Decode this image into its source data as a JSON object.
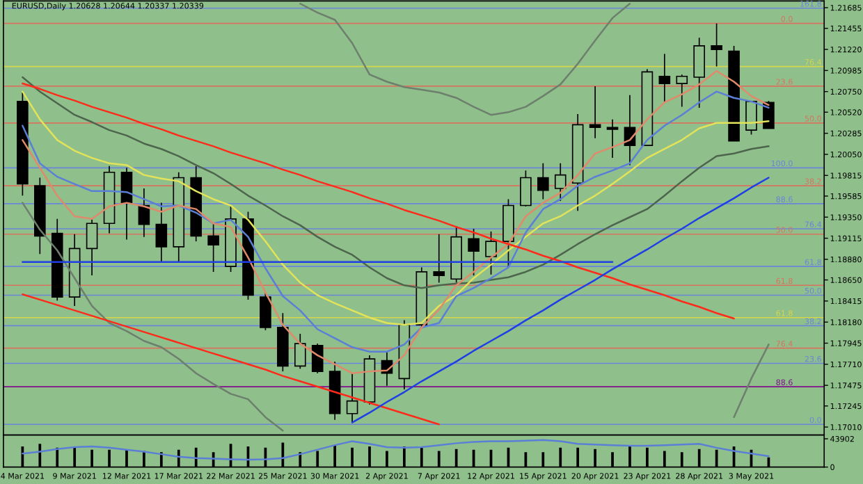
{
  "chart_data": [
    {
      "type": "candlestick",
      "title": "EURUSD,Daily 1.20628 1.20644 1.20337 1.20339",
      "categories": [
        null,
        null,
        null,
        null,
        null,
        null,
        null,
        null,
        null,
        null,
        null,
        null,
        null,
        null,
        null,
        null,
        null,
        null,
        null,
        null,
        null,
        null,
        null,
        null,
        null,
        null,
        null,
        null,
        null,
        null,
        null,
        null,
        null,
        null,
        null,
        null,
        null,
        null,
        null,
        null,
        null,
        null,
        null,
        null
      ],
      "ohlc": [
        [
          1.2064,
          1.2074,
          1.1959,
          1.1972
        ],
        [
          1.197,
          1.1979,
          1.1894,
          1.1914
        ],
        [
          1.1917,
          1.1933,
          1.1842,
          1.1846
        ],
        [
          1.1846,
          1.1916,
          1.1836,
          1.19
        ],
        [
          1.19,
          1.1933,
          1.187,
          1.1928
        ],
        [
          1.1928,
          1.1992,
          1.1917,
          1.1985
        ],
        [
          1.1985,
          1.199,
          1.191,
          1.1951
        ],
        [
          1.1948,
          1.1967,
          1.1913,
          1.1927
        ],
        [
          1.1927,
          1.1951,
          1.1885,
          1.1902
        ],
        [
          1.1902,
          1.1985,
          1.1885,
          1.1979
        ],
        [
          1.1979,
          1.1992,
          1.1908,
          1.1914
        ],
        [
          1.1914,
          1.1928,
          1.1874,
          1.1904
        ],
        [
          1.188,
          1.1947,
          1.1874,
          1.1933
        ],
        [
          1.1933,
          1.1941,
          1.1843,
          1.1848
        ],
        [
          1.1846,
          1.1851,
          1.1809,
          1.1812
        ],
        [
          1.1812,
          1.1828,
          1.1763,
          1.1769
        ],
        [
          1.1769,
          1.1805,
          1.1766,
          1.1794
        ],
        [
          1.1792,
          1.1794,
          1.1761,
          1.1763
        ],
        [
          1.1763,
          1.1774,
          1.1709,
          1.1716
        ],
        [
          1.1716,
          1.1761,
          1.1706,
          1.173
        ],
        [
          1.1729,
          1.1781,
          1.1726,
          1.1777
        ],
        [
          1.1775,
          1.1785,
          1.1747,
          1.1761
        ],
        [
          1.1755,
          1.182,
          1.1743,
          1.1815
        ],
        [
          1.1815,
          1.1879,
          1.1811,
          1.1874
        ],
        [
          1.1874,
          1.1916,
          1.1862,
          1.187
        ],
        [
          1.1866,
          1.1925,
          1.1862,
          1.1913
        ],
        [
          1.1911,
          1.1922,
          1.187,
          1.1897
        ],
        [
          1.1891,
          1.1919,
          1.1871,
          1.1908
        ],
        [
          1.1908,
          1.1955,
          1.1879,
          1.1948
        ],
        [
          1.1948,
          1.1987,
          1.1947,
          1.1979
        ],
        [
          1.1979,
          1.1995,
          1.1955,
          1.1965
        ],
        [
          1.1967,
          1.1995,
          1.1953,
          1.1982
        ],
        [
          1.1973,
          1.205,
          1.1942,
          1.2038
        ],
        [
          1.2038,
          1.2081,
          1.2023,
          1.2035
        ],
        [
          1.2035,
          1.2044,
          1.2001,
          1.2033
        ],
        [
          1.2035,
          1.2071,
          1.1993,
          1.2015
        ],
        [
          1.2015,
          1.21,
          1.2015,
          1.2097
        ],
        [
          1.2092,
          1.2117,
          1.2063,
          1.2084
        ],
        [
          1.2084,
          1.2094,
          1.2058,
          1.2092
        ],
        [
          1.2091,
          1.2135,
          1.2057,
          1.2126
        ],
        [
          1.2126,
          1.2151,
          1.2103,
          1.2122
        ],
        [
          1.212,
          1.2126,
          1.202,
          1.202
        ],
        [
          1.2032,
          1.2064,
          1.2027,
          1.2064
        ],
        [
          1.20628,
          1.20644,
          1.20337,
          1.20339
        ]
      ],
      "series": [
        {
          "type": "line",
          "color": "#6d7f6d",
          "values": [
            null,
            null,
            null,
            null,
            null,
            null,
            null,
            null,
            null,
            null,
            null,
            null,
            null,
            null,
            null,
            null,
            1.2173,
            1.2163,
            1.2155,
            1.2129,
            1.2094,
            1.2086,
            1.208,
            1.2077,
            1.2074,
            1.2068,
            1.2058,
            1.2049,
            1.2052,
            1.2058,
            1.207,
            1.2083,
            1.2106,
            1.2132,
            1.2157,
            1.2173,
            null,
            null,
            null,
            null,
            null,
            null,
            null,
            null
          ]
        },
        {
          "type": "line",
          "color": "#6d7f6d",
          "values": [
            1.1951,
            1.1921,
            1.1898,
            1.1867,
            1.1836,
            1.1817,
            1.1808,
            1.1797,
            1.179,
            1.1777,
            1.1761,
            1.1749,
            1.1738,
            1.1732,
            1.1712,
            1.1697,
            null,
            null,
            null,
            null,
            null,
            null,
            null,
            null,
            null,
            null,
            null,
            null,
            null,
            null,
            null,
            null,
            null,
            null,
            null,
            null,
            null,
            null,
            null,
            null,
            null,
            1.1712,
            1.1755,
            1.1793
          ]
        },
        {
          "type": "line",
          "color": "#4d654d",
          "values": [
            1.2091,
            1.2075,
            1.2062,
            1.2049,
            1.2041,
            1.2032,
            1.2026,
            1.2017,
            1.2011,
            1.2003,
            1.1993,
            1.1984,
            1.1972,
            1.1959,
            1.1948,
            1.1936,
            1.1926,
            1.1913,
            1.1902,
            1.1893,
            1.1879,
            1.1867,
            1.1859,
            1.1856,
            1.1859,
            1.1861,
            1.1862,
            1.1865,
            1.1868,
            1.1874,
            1.1882,
            1.1893,
            1.1905,
            1.1916,
            1.1926,
            1.1935,
            1.1944,
            1.1959,
            1.1975,
            1.199,
            1.2003,
            1.2006,
            1.2011,
            1.2014
          ]
        },
        {
          "type": "line",
          "color": "#e3e35a",
          "values": [
            1.2075,
            1.2044,
            1.2021,
            1.2009,
            1.2001,
            1.1995,
            1.1993,
            1.1982,
            1.1978,
            1.1975,
            1.1964,
            1.1955,
            1.1948,
            1.1932,
            1.1908,
            1.1882,
            1.1862,
            1.1848,
            1.1839,
            1.1831,
            1.1823,
            1.1817,
            1.1815,
            1.1817,
            1.1836,
            1.1848,
            1.1867,
            1.1882,
            1.1898,
            1.1913,
            1.1928,
            1.1936,
            1.1948,
            1.1959,
            1.1972,
            1.1986,
            1.2001,
            1.2011,
            1.2021,
            1.2034,
            1.204,
            1.204,
            1.204,
            1.2042
          ]
        },
        {
          "type": "line",
          "color": "#5b7fd6",
          "values": [
            1.2037,
            1.1995,
            1.198,
            1.1972,
            1.1964,
            1.1964,
            1.1963,
            1.1955,
            1.1947,
            1.1948,
            1.194,
            1.1928,
            1.1932,
            1.1913,
            1.1878,
            1.1847,
            1.1831,
            1.181,
            1.18,
            1.179,
            1.1785,
            1.1785,
            1.1793,
            1.1812,
            1.1817,
            1.1847,
            1.1856,
            1.1867,
            1.1879,
            1.1918,
            1.1944,
            1.1955,
            1.197,
            1.198,
            1.1987,
            1.1995,
            1.2021,
            1.2037,
            1.2049,
            1.2063,
            1.2075,
            1.2068,
            1.2064,
            1.2057
          ]
        },
        {
          "type": "line",
          "color": "#e08a6c",
          "values": [
            1.2021,
            1.199,
            1.1959,
            1.1936,
            1.1933,
            1.1947,
            1.1951,
            1.1947,
            1.1941,
            1.1948,
            1.1944,
            1.1928,
            1.1924,
            1.189,
            1.1851,
            1.1815,
            1.1794,
            1.1781,
            1.1771,
            1.1761,
            1.1763,
            1.1764,
            1.1781,
            1.1812,
            1.1832,
            1.1859,
            1.1874,
            1.189,
            1.1905,
            1.1936,
            1.1951,
            1.1962,
            1.1982,
            1.2006,
            1.2013,
            1.2021,
            1.2044,
            1.2063,
            1.2072,
            1.2083,
            1.2098,
            1.2086,
            1.207,
            1.206
          ]
        },
        {
          "type": "line",
          "color": "#ff2a1a",
          "values": [
            1.2084,
            1.2078,
            1.2071,
            1.2065,
            1.2058,
            1.2052,
            1.2046,
            1.2039,
            1.2033,
            1.2026,
            1.202,
            1.2014,
            1.2007,
            1.2001,
            1.1995,
            1.1988,
            1.1982,
            1.1975,
            1.1969,
            1.1963,
            1.1956,
            1.195,
            1.1943,
            1.1937,
            1.1931,
            1.1924,
            1.1918,
            1.1911,
            1.1905,
            1.1899,
            1.1892,
            1.1886,
            1.1879,
            1.1873,
            1.1867,
            1.186,
            1.1854,
            1.1848,
            1.1841,
            1.1835,
            1.1828,
            1.1822,
            null,
            null
          ]
        },
        {
          "type": "line",
          "color": "#ff2a1a",
          "values": [
            1.1849,
            1.1843,
            1.1837,
            1.1831,
            1.1825,
            1.1819,
            1.1813,
            1.1807,
            1.1801,
            1.1795,
            1.1789,
            1.1783,
            1.1777,
            1.1771,
            1.1765,
            1.1758,
            1.1752,
            1.1746,
            1.174,
            1.1734,
            1.1728,
            1.1722,
            1.1716,
            1.171,
            1.1704,
            null,
            null,
            null,
            null,
            null,
            null,
            null,
            null,
            null,
            null,
            null,
            null,
            null,
            null,
            null,
            null,
            null,
            null,
            null
          ]
        },
        {
          "type": "line",
          "color": "#1f3fe6",
          "values": [
            null,
            null,
            null,
            null,
            null,
            null,
            null,
            null,
            null,
            null,
            null,
            null,
            null,
            null,
            null,
            null,
            null,
            null,
            null,
            1.1706,
            1.1717,
            1.1729,
            1.174,
            1.1752,
            1.1763,
            1.1774,
            1.1786,
            1.1797,
            1.1808,
            1.182,
            1.1831,
            1.1843,
            1.1854,
            1.1865,
            1.1877,
            1.1888,
            1.1899,
            1.1911,
            1.1922,
            1.1934,
            1.1945,
            1.1956,
            1.1968,
            1.1979
          ]
        },
        {
          "type": "line",
          "color": "#1f3fe6",
          "values": [
            1.1885,
            1.1885,
            1.1885,
            1.1885,
            1.1885,
            1.1885,
            1.1885,
            1.1885,
            1.1885,
            1.1885,
            1.1885,
            1.1885,
            1.1885,
            1.1885,
            1.1885,
            1.1885,
            1.1885,
            1.1885,
            1.1885,
            1.1885,
            1.1885,
            1.1885,
            1.1885,
            1.1885,
            1.1885,
            1.1885,
            1.1885,
            1.1885,
            1.1885,
            1.1885,
            1.1885,
            1.1885,
            1.1885,
            1.1885,
            1.1885,
            null,
            null,
            null,
            null,
            null,
            null,
            null,
            null,
            null
          ]
        }
      ],
      "ref_lines": [
        {
          "axis": "y",
          "value": 1.2168,
          "color": "#6a86d8"
        },
        {
          "axis": "y",
          "value": 1.2151,
          "color": "#d8735f"
        },
        {
          "axis": "y",
          "value": 1.2103,
          "color": "#d6d64a"
        },
        {
          "axis": "y",
          "value": 1.2081,
          "color": "#d8735f"
        },
        {
          "axis": "y",
          "value": 1.204,
          "color": "#d8735f"
        },
        {
          "axis": "y",
          "value": 1.199,
          "color": "#6a86d8"
        },
        {
          "axis": "y",
          "value": 1.197,
          "color": "#d8735f"
        },
        {
          "axis": "y",
          "value": 1.195,
          "color": "#6a86d8"
        },
        {
          "axis": "y",
          "value": 1.1922,
          "color": "#6a86d8"
        },
        {
          "axis": "y",
          "value": 1.1916,
          "color": "#d8735f"
        },
        {
          "axis": "y",
          "value": 1.188,
          "color": "#6a86d8"
        },
        {
          "axis": "y",
          "value": 1.1859,
          "color": "#d8735f"
        },
        {
          "axis": "y",
          "value": 1.1848,
          "color": "#6a86d8"
        },
        {
          "axis": "y",
          "value": 1.1823,
          "color": "#d6d64a"
        },
        {
          "axis": "y",
          "value": 1.1814,
          "color": "#6a86d8"
        },
        {
          "axis": "y",
          "value": 1.1789,
          "color": "#d8735f"
        },
        {
          "axis": "y",
          "value": 1.1772,
          "color": "#6a86d8"
        },
        {
          "axis": "y",
          "value": 1.1746,
          "color": "#80108a"
        },
        {
          "axis": "y",
          "value": 1.1704,
          "color": "#6a86d8"
        }
      ],
      "annotations": [
        {
          "text": "161.8",
          "y": 1.2168
        },
        {
          "text": "0.0",
          "y": 1.2151
        },
        {
          "text": "76.4",
          "y": 1.2103
        },
        {
          "text": "23.6",
          "y": 1.2081
        },
        {
          "text": "50.0",
          "y": 1.204
        },
        {
          "text": "100.0",
          "y": 1.199
        },
        {
          "text": "38.2",
          "y": 1.197
        },
        {
          "text": "88.6",
          "y": 1.195
        },
        {
          "text": "76.4",
          "y": 1.1922
        },
        {
          "text": "50.0",
          "y": 1.1916
        },
        {
          "text": "61.8",
          "y": 1.188
        },
        {
          "text": "61.8",
          "y": 1.1859
        },
        {
          "text": "50.0",
          "y": 1.1848
        },
        {
          "text": "61.8",
          "y": 1.1823
        },
        {
          "text": "38.2",
          "y": 1.1814
        },
        {
          "text": "76.4",
          "y": 1.1789
        },
        {
          "text": "23.6",
          "y": 1.1772
        },
        {
          "text": "88.6",
          "y": 1.1746
        },
        {
          "text": "0.0",
          "y": 1.1704
        }
      ],
      "ylim": [
        1.1692,
        1.2176
      ],
      "yticks": [
        {
          "value": 1.1701,
          "label": "1.17010"
        },
        {
          "value": 1.17245,
          "label": "1.17245"
        },
        {
          "value": 1.17475,
          "label": "1.17475"
        },
        {
          "value": 1.1771,
          "label": "1.17710"
        },
        {
          "value": 1.17945,
          "label": "1.17945"
        },
        {
          "value": 1.1818,
          "label": "1.18180"
        },
        {
          "value": 1.18415,
          "label": "1.18415"
        },
        {
          "value": 1.1865,
          "label": "1.18650"
        },
        {
          "value": 1.1888,
          "label": "1.18880"
        },
        {
          "value": 1.19115,
          "label": "1.19115"
        },
        {
          "value": 1.1935,
          "label": "1.19350"
        },
        {
          "value": 1.19585,
          "label": "1.19585"
        },
        {
          "value": 1.19815,
          "label": "1.19815"
        },
        {
          "value": 1.2005,
          "label": "1.20050"
        },
        {
          "value": 1.20285,
          "label": "1.20285"
        },
        {
          "value": 1.2052,
          "label": "1.20520"
        },
        {
          "value": 1.2075,
          "label": "1.20750"
        },
        {
          "value": 1.20985,
          "label": "1.20985"
        },
        {
          "value": 1.2122,
          "label": "1.21220"
        },
        {
          "value": 1.21455,
          "label": "1.21455"
        },
        {
          "value": 1.21685,
          "label": "1.21685"
        }
      ],
      "tick_labels": "y"
    },
    {
      "type": "bar",
      "categories": [
        "4 Mar 2021",
        null,
        null,
        "9 Mar 2021",
        null,
        null,
        "12 Mar 2021",
        null,
        null,
        "17 Mar 2021",
        null,
        null,
        "22 Mar 2021",
        null,
        null,
        "25 Mar 2021",
        null,
        null,
        "30 Mar 2021",
        null,
        null,
        "2 Apr 2021",
        null,
        null,
        "7 Apr 2021",
        null,
        null,
        "12 Apr 2021",
        null,
        null,
        "15 Apr 2021",
        null,
        null,
        "20 Apr 2021",
        null,
        null,
        "23 Apr 2021",
        null,
        null,
        "28 Apr 2021",
        null,
        null,
        "3 May 2021",
        null
      ],
      "series": [
        {
          "type": "bar",
          "color": "#000000",
          "values": [
            32000,
            36000,
            30000,
            30000,
            27000,
            27000,
            27000,
            25000,
            23000,
            27000,
            30000,
            23000,
            36000,
            32000,
            30000,
            38000,
            23000,
            25000,
            34000,
            30000,
            32000,
            25000,
            32000,
            30000,
            25000,
            28000,
            27000,
            27000,
            30000,
            23000,
            23000,
            30000,
            30000,
            28000,
            23000,
            32000,
            30000,
            25000,
            23000,
            28000,
            27000,
            32000,
            27000,
            15000
          ]
        },
        {
          "type": "line",
          "color": "#5b7fd6",
          "values": [
            21000,
            24000,
            28000,
            31000,
            32000,
            30000,
            27000,
            24000,
            20000,
            16000,
            14000,
            13000,
            12000,
            11500,
            12000,
            14000,
            20000,
            27000,
            34000,
            40000,
            36000,
            31000,
            30000,
            31000,
            34000,
            37000,
            39000,
            40000,
            40000,
            41000,
            42000,
            40000,
            36000,
            35000,
            34000,
            33000,
            33000,
            34000,
            35000,
            36000,
            30000,
            25000,
            21000,
            17000
          ]
        }
      ],
      "ylim": [
        0,
        49600
      ],
      "yticks": [
        0,
        43902
      ]
    }
  ]
}
